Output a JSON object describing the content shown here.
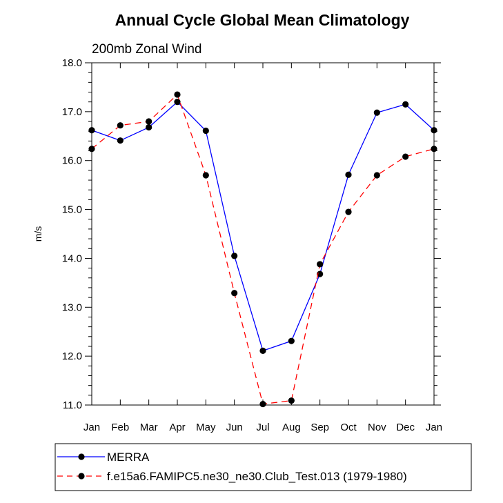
{
  "chart_data": {
    "type": "line",
    "title": "Annual Cycle Global Mean Climatology",
    "subtitle": "200mb Zonal Wind",
    "xlabel": "",
    "ylabel": "m/s",
    "categories": [
      "Jan",
      "Feb",
      "Mar",
      "Apr",
      "May",
      "Jun",
      "Jul",
      "Aug",
      "Sep",
      "Oct",
      "Nov",
      "Dec",
      "Jan"
    ],
    "ylim": [
      11.0,
      18.0
    ],
    "yticks": [
      "11.0",
      "12.0",
      "13.0",
      "14.0",
      "15.0",
      "16.0",
      "17.0",
      "18.0"
    ],
    "grid": false,
    "legend_position": "bottom",
    "series": [
      {
        "name": "MERRA",
        "color": "#0000ff",
        "dash": "solid",
        "values": [
          16.62,
          16.41,
          16.68,
          17.2,
          16.61,
          14.05,
          12.11,
          12.31,
          13.68,
          15.71,
          16.98,
          17.15,
          16.62
        ]
      },
      {
        "name": "f.e15a6.FAMIPC5.ne30_ne30.Club_Test.013 (1979-1980)",
        "color": "#ff0000",
        "dash": "dashed",
        "values": [
          16.24,
          16.72,
          16.8,
          17.35,
          15.7,
          13.29,
          11.02,
          11.09,
          13.88,
          14.95,
          15.7,
          16.08,
          16.24
        ]
      }
    ]
  }
}
